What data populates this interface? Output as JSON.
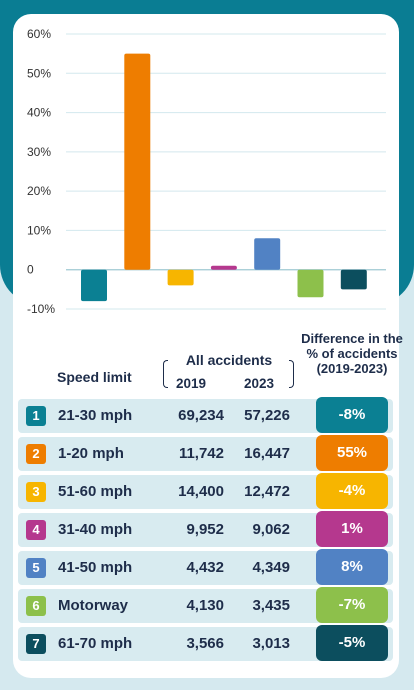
{
  "chart_data": {
    "type": "bar",
    "categories": [
      "21-30 mph",
      "1-20 mph",
      "51-60 mph",
      "31-40 mph",
      "41-50 mph",
      "Motorway",
      "61-70 mph"
    ],
    "values": [
      -8,
      55,
      -4,
      1,
      8,
      -7,
      -5
    ],
    "colors": [
      "#0b8093",
      "#ee7d00",
      "#f7b500",
      "#b5388e",
      "#5182c4",
      "#8dc04b",
      "#0c4e5e"
    ],
    "ylim": [
      -10,
      60
    ],
    "yticks": [
      60,
      50,
      40,
      30,
      20,
      10,
      0,
      -10
    ],
    "ytick_labels": [
      "60%",
      "50%",
      "40%",
      "30%",
      "20%",
      "10%",
      "0",
      "-10%"
    ],
    "grid": true
  },
  "table": {
    "headers": {
      "speed_limit": "Speed limit",
      "all_accidents": "All accidents",
      "year_2019": "2019",
      "year_2023": "2023",
      "difference": "Difference in the % of accidents (2019-2023)"
    },
    "rows": [
      {
        "num": "1",
        "speed": "21-30 mph",
        "y2019": "69,234",
        "y2023": "57,226",
        "diff": "-8%"
      },
      {
        "num": "2",
        "speed": "1-20 mph",
        "y2019": "11,742",
        "y2023": "16,447",
        "diff": "55%"
      },
      {
        "num": "3",
        "speed": "51-60 mph",
        "y2019": "14,400",
        "y2023": "12,472",
        "diff": "-4%"
      },
      {
        "num": "4",
        "speed": "31-40 mph",
        "y2019": "9,952",
        "y2023": "9,062",
        "diff": "1%"
      },
      {
        "num": "5",
        "speed": "41-50 mph",
        "y2019": "4,432",
        "y2023": "4,349",
        "diff": "8%"
      },
      {
        "num": "6",
        "speed": "Motorway",
        "y2019": "4,130",
        "y2023": "3,435",
        "diff": "-7%"
      },
      {
        "num": "7",
        "speed": "61-70 mph",
        "y2019": "3,566",
        "y2023": "3,013",
        "diff": "-5%"
      }
    ]
  }
}
